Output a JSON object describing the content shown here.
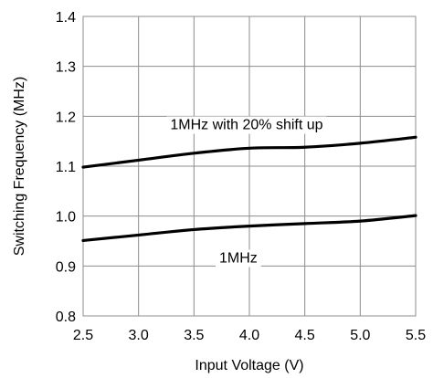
{
  "chart_data": {
    "type": "line",
    "title": "",
    "xlabel": "Input Voltage (V)",
    "ylabel": "Switching Frequency (MHz)",
    "xlim": [
      2.5,
      5.5
    ],
    "ylim": [
      0.8,
      1.4
    ],
    "grid": true,
    "x_ticks": [
      "2.5",
      "3.0",
      "3.5",
      "4.0",
      "4.5",
      "5.0",
      "5.5"
    ],
    "y_ticks": [
      "0.8",
      "0.9",
      "1.0",
      "1.1",
      "1.2",
      "1.3",
      "1.4"
    ],
    "x": [
      2.5,
      3.0,
      3.5,
      4.0,
      4.5,
      5.0,
      5.5
    ],
    "series": [
      {
        "values": [
          1.098,
          1.112,
          1.126,
          1.136,
          1.138,
          1.146,
          1.158
        ],
        "color": "#000000"
      },
      {
        "values": [
          0.951,
          0.962,
          0.973,
          0.98,
          0.985,
          0.99,
          1.001
        ],
        "color": "#000000"
      }
    ],
    "annotations": [
      {
        "text": "1MHz with 20% shift up",
        "x": 3.975,
        "y": 1.185
      },
      {
        "text": "1MHz",
        "x": 3.9,
        "y": 0.918
      }
    ]
  }
}
